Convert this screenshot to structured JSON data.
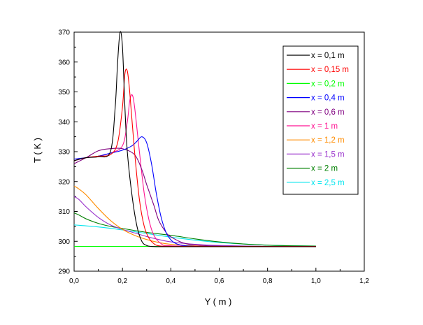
{
  "chart_data": {
    "type": "line",
    "title": "",
    "xlabel": "Y ( m )",
    "ylabel": "T ( K )",
    "xlim": [
      0.0,
      1.2
    ],
    "ylim": [
      290,
      370
    ],
    "x_ticks": [
      0.0,
      0.2,
      0.4,
      0.6,
      0.8,
      1.0,
      1.2
    ],
    "x_tick_labels": [
      "0,0",
      "0,2",
      "0,4",
      "0,6",
      "0,8",
      "1,0",
      "1,2"
    ],
    "y_ticks": [
      290,
      300,
      310,
      320,
      330,
      340,
      350,
      360,
      370
    ],
    "y_tick_labels": [
      "290",
      "300",
      "310",
      "320",
      "330",
      "340",
      "350",
      "360",
      "370"
    ],
    "grid": false,
    "legend_position": "top-right",
    "series": [
      {
        "name": "x = 0,1 m",
        "color": "#000000",
        "x": [
          0.0,
          0.05,
          0.1,
          0.15,
          0.17,
          0.18,
          0.19,
          0.2,
          0.21,
          0.22,
          0.24,
          0.26,
          0.28,
          0.3,
          0.32,
          0.35,
          0.4,
          0.6,
          0.8,
          1.0
        ],
        "y": [
          327,
          328,
          328.3,
          330,
          345,
          360,
          370,
          365,
          345,
          330,
          315,
          305,
          300,
          298.6,
          298.3,
          298.2,
          298.2,
          298.2,
          298.2,
          298.2
        ]
      },
      {
        "name": "x = 0,15 m",
        "color": "#ff0000",
        "x": [
          0.0,
          0.05,
          0.1,
          0.15,
          0.18,
          0.2,
          0.21,
          0.22,
          0.23,
          0.25,
          0.27,
          0.29,
          0.31,
          0.33,
          0.35,
          0.4,
          0.6,
          0.8,
          1.0
        ],
        "y": [
          327,
          328,
          328.5,
          329,
          333,
          345,
          356,
          357,
          350,
          330,
          314,
          305,
          301,
          299.2,
          298.5,
          298.3,
          298.3,
          298.3,
          298.3
        ]
      },
      {
        "name": "x = 0,2 m",
        "color": "#00ff00",
        "x": [
          0.0,
          0.1,
          0.2,
          0.3,
          0.4,
          0.6,
          0.8,
          1.0
        ],
        "y": [
          298.3,
          298.3,
          298.3,
          298.3,
          298.3,
          298.3,
          298.3,
          298.3
        ]
      },
      {
        "name": "x = 0,4 m",
        "color": "#0000ff",
        "x": [
          0.0,
          0.05,
          0.1,
          0.15,
          0.2,
          0.24,
          0.26,
          0.28,
          0.3,
          0.32,
          0.34,
          0.36,
          0.38,
          0.4,
          0.42,
          0.45,
          0.5,
          0.6,
          0.8,
          1.0
        ],
        "y": [
          327.5,
          328,
          328.5,
          329.5,
          330.5,
          332,
          333.5,
          335,
          333,
          326,
          316,
          308,
          303,
          300.5,
          299.3,
          298.6,
          298.3,
          298.2,
          298.2,
          298.2
        ]
      },
      {
        "name": "x = 0,6 m",
        "color": "#800080",
        "x": [
          0.0,
          0.05,
          0.1,
          0.15,
          0.2,
          0.25,
          0.28,
          0.3,
          0.33,
          0.35,
          0.38,
          0.4,
          0.45,
          0.5,
          0.6,
          0.8,
          1.0
        ],
        "y": [
          326,
          328,
          330.3,
          331,
          331,
          329,
          324,
          319,
          312,
          307,
          303,
          301.5,
          299.5,
          298.8,
          298.4,
          298.3,
          298.3
        ]
      },
      {
        "name": "x = 1 m",
        "color": "#ff1493",
        "x": [
          0.0,
          0.05,
          0.1,
          0.15,
          0.2,
          0.22,
          0.23,
          0.24,
          0.25,
          0.27,
          0.29,
          0.31,
          0.33,
          0.36,
          0.4,
          0.6,
          0.8,
          1.0
        ],
        "y": [
          327,
          328,
          328.5,
          329.5,
          332,
          340,
          347,
          349,
          345,
          330,
          316,
          307,
          302,
          299.2,
          298.5,
          298.3,
          298.3,
          298.3
        ]
      },
      {
        "name": "x = 1,2 m",
        "color": "#ff8c00",
        "x": [
          0.0,
          0.02,
          0.05,
          0.1,
          0.15,
          0.2,
          0.25,
          0.3,
          0.35,
          0.4,
          0.5,
          0.6,
          0.8,
          1.0
        ],
        "y": [
          318.5,
          317.5,
          315.5,
          311,
          307,
          304,
          302,
          300.6,
          299.6,
          299,
          298.5,
          298.3,
          298.2,
          298.2
        ]
      },
      {
        "name": "x = 1,5 m",
        "color": "#9932cc",
        "x": [
          0.0,
          0.02,
          0.05,
          0.1,
          0.15,
          0.2,
          0.25,
          0.3,
          0.35,
          0.4,
          0.5,
          0.6,
          0.8,
          1.0
        ],
        "y": [
          315,
          314,
          311.5,
          308,
          305.5,
          304,
          302.8,
          301.6,
          300.6,
          299.8,
          299,
          298.6,
          298.3,
          298.3
        ]
      },
      {
        "name": "x = 2 m",
        "color": "#008000",
        "x": [
          0.0,
          0.02,
          0.05,
          0.1,
          0.15,
          0.2,
          0.3,
          0.4,
          0.5,
          0.6,
          0.7,
          0.8,
          0.9,
          1.0
        ],
        "y": [
          309.5,
          308.8,
          307.5,
          306,
          305,
          304.3,
          303,
          302,
          300.8,
          299.8,
          299.1,
          298.7,
          298.5,
          298.4
        ]
      },
      {
        "name": "x = 2,5 m",
        "color": "#00e5ee",
        "x": [
          0.0,
          0.1,
          0.2,
          0.3,
          0.4,
          0.5,
          0.6,
          0.7,
          0.8,
          0.9,
          1.0
        ],
        "y": [
          305.5,
          304.8,
          303.8,
          302.6,
          301.4,
          300.4,
          299.6,
          299.1,
          298.7,
          298.5,
          298.4
        ]
      }
    ]
  }
}
